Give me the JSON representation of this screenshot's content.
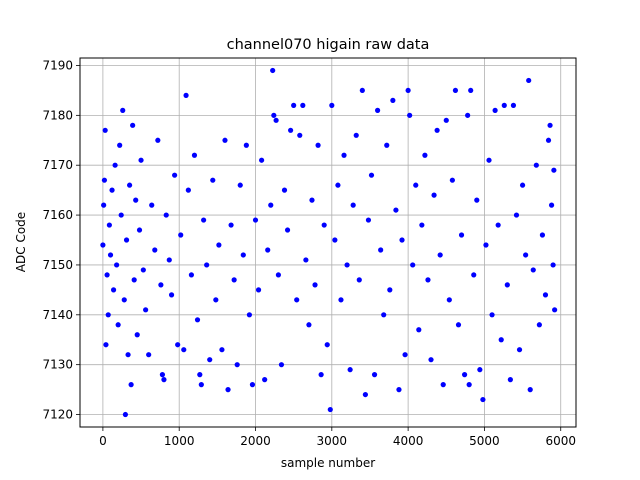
{
  "chart_data": {
    "type": "scatter",
    "title": "channel070 higain raw data",
    "xlabel": "sample number",
    "ylabel": "ADC Code",
    "xlim": [
      -300,
      6200
    ],
    "ylim": [
      7117.5,
      7191.5
    ],
    "x_ticks": [
      0,
      1000,
      2000,
      3000,
      4000,
      5000,
      6000
    ],
    "y_ticks": [
      7120,
      7130,
      7140,
      7150,
      7160,
      7170,
      7180,
      7190
    ],
    "grid": true,
    "marker_color": "#0000ff",
    "series": [
      {
        "points": [
          [
            0,
            7154
          ],
          [
            10,
            7162
          ],
          [
            20,
            7167
          ],
          [
            30,
            7177
          ],
          [
            40,
            7134
          ],
          [
            55,
            7148
          ],
          [
            70,
            7140
          ],
          [
            85,
            7158
          ],
          [
            100,
            7152
          ],
          [
            120,
            7165
          ],
          [
            140,
            7145
          ],
          [
            160,
            7170
          ],
          [
            180,
            7150
          ],
          [
            200,
            7138
          ],
          [
            220,
            7174
          ],
          [
            240,
            7160
          ],
          [
            260,
            7181
          ],
          [
            280,
            7143
          ],
          [
            295,
            7120
          ],
          [
            310,
            7155
          ],
          [
            330,
            7132
          ],
          [
            350,
            7166
          ],
          [
            370,
            7126
          ],
          [
            390,
            7178
          ],
          [
            410,
            7147
          ],
          [
            430,
            7163
          ],
          [
            450,
            7136
          ],
          [
            480,
            7157
          ],
          [
            500,
            7171
          ],
          [
            530,
            7149
          ],
          [
            560,
            7141
          ],
          [
            600,
            7132
          ],
          [
            640,
            7162
          ],
          [
            680,
            7153
          ],
          [
            720,
            7175
          ],
          [
            760,
            7146
          ],
          [
            780,
            7128
          ],
          [
            800,
            7127
          ],
          [
            830,
            7160
          ],
          [
            870,
            7151
          ],
          [
            900,
            7144
          ],
          [
            940,
            7168
          ],
          [
            980,
            7134
          ],
          [
            1020,
            7156
          ],
          [
            1060,
            7133
          ],
          [
            1090,
            7184
          ],
          [
            1120,
            7165
          ],
          [
            1160,
            7148
          ],
          [
            1200,
            7172
          ],
          [
            1240,
            7139
          ],
          [
            1270,
            7128
          ],
          [
            1290,
            7126
          ],
          [
            1320,
            7159
          ],
          [
            1360,
            7150
          ],
          [
            1400,
            7131
          ],
          [
            1440,
            7167
          ],
          [
            1480,
            7143
          ],
          [
            1520,
            7154
          ],
          [
            1560,
            7133
          ],
          [
            1600,
            7175
          ],
          [
            1640,
            7125
          ],
          [
            1680,
            7158
          ],
          [
            1720,
            7147
          ],
          [
            1760,
            7130
          ],
          [
            1800,
            7166
          ],
          [
            1840,
            7152
          ],
          [
            1880,
            7174
          ],
          [
            1920,
            7140
          ],
          [
            1960,
            7126
          ],
          [
            2000,
            7159
          ],
          [
            2040,
            7145
          ],
          [
            2080,
            7171
          ],
          [
            2120,
            7127
          ],
          [
            2160,
            7153
          ],
          [
            2200,
            7162
          ],
          [
            2225,
            7189
          ],
          [
            2240,
            7180
          ],
          [
            2270,
            7179
          ],
          [
            2300,
            7148
          ],
          [
            2340,
            7130
          ],
          [
            2380,
            7165
          ],
          [
            2420,
            7157
          ],
          [
            2460,
            7177
          ],
          [
            2500,
            7182
          ],
          [
            2540,
            7143
          ],
          [
            2580,
            7176
          ],
          [
            2620,
            7182
          ],
          [
            2660,
            7151
          ],
          [
            2700,
            7138
          ],
          [
            2740,
            7163
          ],
          [
            2780,
            7146
          ],
          [
            2820,
            7174
          ],
          [
            2860,
            7128
          ],
          [
            2900,
            7158
          ],
          [
            2940,
            7134
          ],
          [
            2980,
            7121
          ],
          [
            3000,
            7182
          ],
          [
            3040,
            7155
          ],
          [
            3080,
            7166
          ],
          [
            3120,
            7143
          ],
          [
            3160,
            7172
          ],
          [
            3200,
            7150
          ],
          [
            3240,
            7129
          ],
          [
            3280,
            7162
          ],
          [
            3320,
            7176
          ],
          [
            3360,
            7147
          ],
          [
            3400,
            7185
          ],
          [
            3440,
            7124
          ],
          [
            3480,
            7159
          ],
          [
            3520,
            7168
          ],
          [
            3560,
            7128
          ],
          [
            3600,
            7181
          ],
          [
            3640,
            7153
          ],
          [
            3680,
            7140
          ],
          [
            3720,
            7174
          ],
          [
            3760,
            7145
          ],
          [
            3800,
            7183
          ],
          [
            3840,
            7161
          ],
          [
            3880,
            7125
          ],
          [
            3920,
            7155
          ],
          [
            3960,
            7132
          ],
          [
            4000,
            7185
          ],
          [
            4020,
            7180
          ],
          [
            4060,
            7150
          ],
          [
            4100,
            7166
          ],
          [
            4140,
            7137
          ],
          [
            4180,
            7158
          ],
          [
            4220,
            7172
          ],
          [
            4260,
            7147
          ],
          [
            4300,
            7131
          ],
          [
            4340,
            7164
          ],
          [
            4380,
            7177
          ],
          [
            4420,
            7152
          ],
          [
            4460,
            7126
          ],
          [
            4500,
            7179
          ],
          [
            4540,
            7143
          ],
          [
            4580,
            7167
          ],
          [
            4620,
            7185
          ],
          [
            4660,
            7138
          ],
          [
            4700,
            7156
          ],
          [
            4740,
            7128
          ],
          [
            4780,
            7180
          ],
          [
            4800,
            7126
          ],
          [
            4820,
            7185
          ],
          [
            4860,
            7148
          ],
          [
            4900,
            7163
          ],
          [
            4940,
            7129
          ],
          [
            4980,
            7123
          ],
          [
            5020,
            7154
          ],
          [
            5060,
            7171
          ],
          [
            5100,
            7140
          ],
          [
            5140,
            7181
          ],
          [
            5180,
            7158
          ],
          [
            5220,
            7135
          ],
          [
            5260,
            7182
          ],
          [
            5300,
            7146
          ],
          [
            5340,
            7127
          ],
          [
            5380,
            7182
          ],
          [
            5420,
            7160
          ],
          [
            5460,
            7133
          ],
          [
            5500,
            7166
          ],
          [
            5540,
            7152
          ],
          [
            5580,
            7187
          ],
          [
            5600,
            7125
          ],
          [
            5640,
            7149
          ],
          [
            5680,
            7170
          ],
          [
            5720,
            7138
          ],
          [
            5760,
            7156
          ],
          [
            5800,
            7144
          ],
          [
            5840,
            7175
          ],
          [
            5860,
            7178
          ],
          [
            5880,
            7162
          ],
          [
            5900,
            7150
          ],
          [
            5910,
            7169
          ],
          [
            5920,
            7141
          ]
        ]
      }
    ]
  }
}
